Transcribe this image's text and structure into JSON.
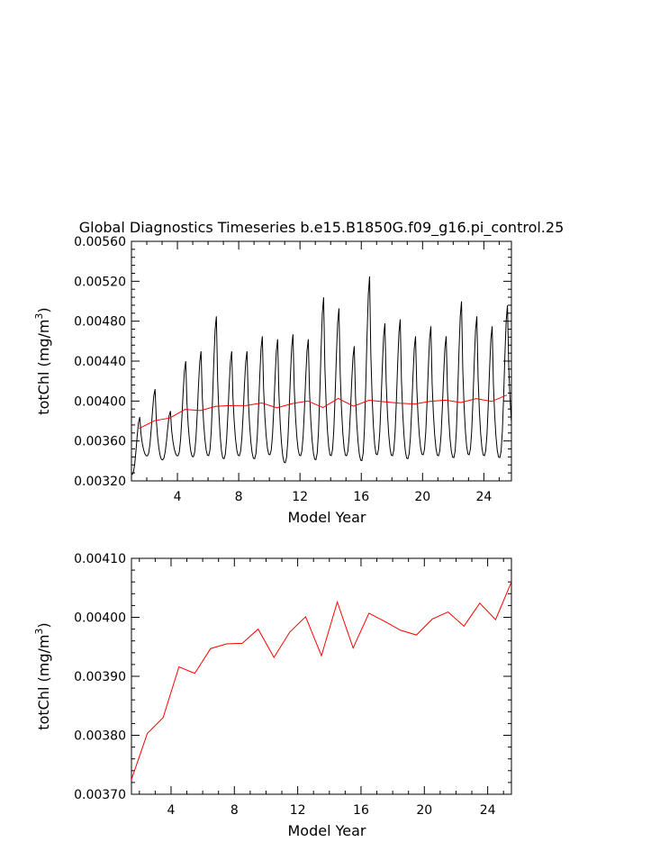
{
  "title": "Global Diagnostics Timeseries b.e15.B1850G.f09_g16.pi_control.25",
  "chart_data": [
    {
      "type": "line",
      "xlabel": "Model Year",
      "ylabel_text": "totChl (mg/m",
      "ylabel_sup": "3",
      "ylabel_close": ")",
      "xlim": [
        1,
        25.8
      ],
      "ylim": [
        0.0032,
        0.0056
      ],
      "xticks": [
        4,
        8,
        12,
        16,
        20,
        24
      ],
      "yticks": [
        0.0032,
        0.0036,
        0.004,
        0.0044,
        0.0048,
        0.0052,
        0.0056
      ],
      "ytick_labels": [
        "0.00320",
        "0.00360",
        "0.00400",
        "0.00440",
        "0.00480",
        "0.00520",
        "0.00560"
      ],
      "colors": {
        "monthly": "#000000",
        "annual": "#ff0000"
      },
      "series": [
        {
          "key": "monthly",
          "line_color": "#000000",
          "peaks": [
            0.00384,
            0.00412,
            0.0039,
            0.0044,
            0.0045,
            0.00485,
            0.0045,
            0.0045,
            0.00465,
            0.00462,
            0.00467,
            0.00462,
            0.00504,
            0.00493,
            0.00455,
            0.00525,
            0.00478,
            0.00482,
            0.00465,
            0.00475,
            0.00465,
            0.005,
            0.00485,
            0.00475,
            0.00496,
            0.00498
          ],
          "troughs": [
            0.00326,
            0.00345,
            0.00341,
            0.00345,
            0.00344,
            0.00345,
            0.00342,
            0.00345,
            0.00342,
            0.00346,
            0.00338,
            0.00345,
            0.00341,
            0.00345,
            0.00345,
            0.0034,
            0.00346,
            0.00345,
            0.00342,
            0.00346,
            0.00345,
            0.00343,
            0.00346,
            0.00345,
            0.00343,
            0.00358
          ]
        },
        {
          "key": "annual",
          "line_color": "#ff0000",
          "x": [
            1.5,
            2.5,
            3.5,
            4.5,
            5.5,
            6.5,
            7.5,
            8.5,
            9.5,
            10.5,
            11.5,
            12.5,
            13.5,
            14.5,
            15.5,
            16.5,
            17.5,
            18.5,
            19.5,
            20.5,
            21.5,
            22.5,
            23.5,
            24.5,
            25.5
          ],
          "y": [
            0.003725,
            0.003803,
            0.00383,
            0.003916,
            0.003905,
            0.003947,
            0.003955,
            0.003956,
            0.00398,
            0.003932,
            0.003975,
            0.004001,
            0.003935,
            0.004026,
            0.003948,
            0.004007,
            0.003993,
            0.003978,
            0.00397,
            0.003997,
            0.004009,
            0.003985,
            0.004024,
            0.003996,
            0.00406
          ]
        }
      ]
    },
    {
      "type": "line",
      "xlabel": "Model Year",
      "ylabel_text": "totChl (mg/m",
      "ylabel_sup": "3",
      "ylabel_close": ")",
      "xlim": [
        1.5,
        25.5
      ],
      "ylim": [
        0.0037,
        0.0041
      ],
      "xticks": [
        4,
        8,
        12,
        16,
        20,
        24
      ],
      "yticks": [
        0.0037,
        0.0038,
        0.0039,
        0.004,
        0.0041
      ],
      "ytick_labels": [
        "0.00370",
        "0.00380",
        "0.00390",
        "0.00400",
        "0.00410"
      ],
      "series": [
        {
          "key": "annual",
          "line_color": "#ff0000",
          "x": [
            1.5,
            2.5,
            3.5,
            4.5,
            5.5,
            6.5,
            7.5,
            8.5,
            9.5,
            10.5,
            11.5,
            12.5,
            13.5,
            14.5,
            15.5,
            16.5,
            17.5,
            18.5,
            19.5,
            20.5,
            21.5,
            22.5,
            23.5,
            24.5,
            25.5
          ],
          "y": [
            0.003725,
            0.003803,
            0.00383,
            0.003916,
            0.003905,
            0.003947,
            0.003955,
            0.003956,
            0.00398,
            0.003932,
            0.003975,
            0.004001,
            0.003935,
            0.004026,
            0.003948,
            0.004007,
            0.003993,
            0.003978,
            0.00397,
            0.003997,
            0.004009,
            0.003985,
            0.004024,
            0.003996,
            0.00406
          ]
        }
      ]
    }
  ]
}
